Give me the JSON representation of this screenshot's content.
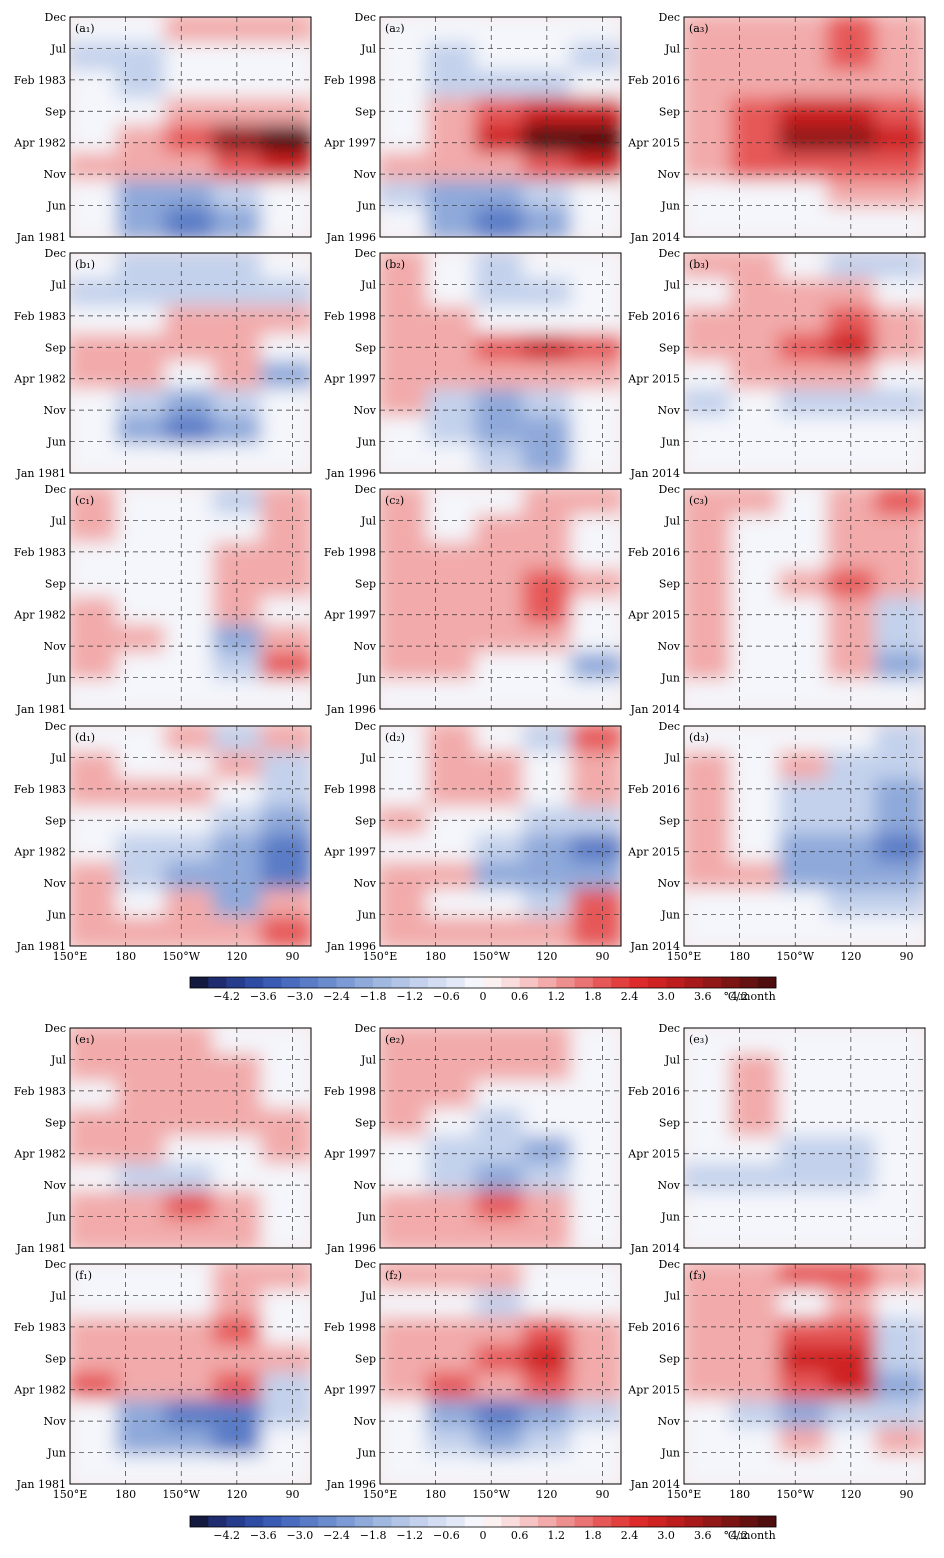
{
  "chart_data": {
    "type": "heatmap",
    "description_units": "SST tendency anomaly, Hovmoller (longitude vs time) contour panels",
    "colorbar": {
      "unit_label": "℃/month",
      "tick_labels": [
        "−4.2",
        "−3.6",
        "−3.0",
        "−2.4",
        "−1.8",
        "−1.2",
        "−0.6",
        "0",
        "0.6",
        "1.2",
        "1.8",
        "2.4",
        "3.0",
        "3.6",
        "4.2"
      ],
      "bins": [
        -4.8,
        -4.5,
        -4.2,
        -3.9,
        -3.6,
        -3.3,
        -3.0,
        -2.7,
        -2.4,
        -2.1,
        -1.8,
        -1.5,
        -1.2,
        -0.9,
        -0.6,
        -0.3,
        0,
        0.3,
        0.6,
        0.9,
        1.2,
        1.5,
        1.8,
        2.1,
        2.4,
        2.7,
        3.0,
        3.3,
        3.6,
        3.9,
        4.2,
        4.5,
        4.8
      ],
      "colors": [
        "#14193f",
        "#1f2d70",
        "#263c8c",
        "#2e4ca3",
        "#3a5bb3",
        "#4a6cbe",
        "#5a7cc6",
        "#6a8ccd",
        "#7c9bd4",
        "#8ea9da",
        "#a0b7e0",
        "#b2c5e6",
        "#c3d1ec",
        "#d3ddf1",
        "#e2e8f5",
        "#f4f6fb",
        "#fbf1f1",
        "#f9dcdc",
        "#f6c4c4",
        "#f2aaaa",
        "#ee8f8f",
        "#ea7474",
        "#e65858",
        "#e23f3f",
        "#dd2a2a",
        "#cf2222",
        "#be1d1d",
        "#a81a1a",
        "#921717",
        "#7c1414",
        "#661111",
        "#500d0d"
      ]
    },
    "longitude_ticks": [
      "150°E",
      "180",
      "150°W",
      "120",
      "90"
    ],
    "columns": [
      {
        "time_ticks": [
          "Jan 1981",
          "Jun",
          "Nov",
          "Apr 1982",
          "Sep",
          "Feb 1983",
          "Jul",
          "Dec"
        ]
      },
      {
        "time_ticks": [
          "Jan 1996",
          "Jun",
          "Nov",
          "Apr 1997",
          "Sep",
          "Feb 1998",
          "Jul",
          "Dec"
        ]
      },
      {
        "time_ticks": [
          "Jan 2014",
          "Jun",
          "Nov",
          "Apr 2015",
          "Sep",
          "Feb 2016",
          "Jul",
          "Dec"
        ]
      }
    ],
    "panels": [
      {
        "label": "(a₁)",
        "row": 0,
        "col": 0,
        "sign": [
          [
            0,
            0,
            1,
            1,
            1
          ],
          [
            -1,
            -1,
            0,
            0,
            0
          ],
          [
            0,
            -1,
            0,
            0,
            0
          ],
          [
            0,
            0,
            1,
            1,
            1
          ],
          [
            0,
            1,
            2,
            4,
            5
          ],
          [
            1,
            1,
            1,
            2,
            3
          ],
          [
            0,
            -2,
            -2,
            -1,
            0
          ],
          [
            0,
            -2,
            -3,
            -2,
            0
          ]
        ]
      },
      {
        "label": "(a₂)",
        "row": 0,
        "col": 1,
        "sign": [
          [
            0,
            0,
            0,
            0,
            0
          ],
          [
            0,
            -1,
            0,
            0,
            -1
          ],
          [
            0,
            -1,
            -1,
            -1,
            0
          ],
          [
            0,
            1,
            2,
            3,
            3
          ],
          [
            0,
            1,
            3,
            5,
            6
          ],
          [
            1,
            1,
            1,
            2,
            3
          ],
          [
            -1,
            -2,
            -2,
            -1,
            0
          ],
          [
            0,
            -2,
            -3,
            -2,
            0
          ]
        ]
      },
      {
        "label": "(a₃)",
        "row": 0,
        "col": 2,
        "sign": [
          [
            1,
            1,
            1,
            2,
            1
          ],
          [
            1,
            1,
            1,
            2,
            1
          ],
          [
            1,
            1,
            1,
            1,
            1
          ],
          [
            1,
            2,
            3,
            3,
            2
          ],
          [
            1,
            2,
            4,
            4,
            3
          ],
          [
            1,
            2,
            2,
            2,
            2
          ],
          [
            0,
            0,
            0,
            1,
            1
          ],
          [
            0,
            0,
            0,
            0,
            0
          ]
        ]
      },
      {
        "label": "(b₁)",
        "row": 1,
        "col": 0,
        "sign": [
          [
            0,
            -1,
            -1,
            -1,
            0
          ],
          [
            -1,
            -1,
            -1,
            -1,
            -1
          ],
          [
            0,
            0,
            1,
            1,
            1
          ],
          [
            1,
            1,
            1,
            1,
            0
          ],
          [
            1,
            1,
            0,
            1,
            -2
          ],
          [
            0,
            -1,
            -2,
            -1,
            0
          ],
          [
            0,
            -2,
            -3,
            -2,
            0
          ],
          [
            0,
            0,
            0,
            0,
            0
          ]
        ]
      },
      {
        "label": "(b₂)",
        "row": 1,
        "col": 1,
        "sign": [
          [
            1,
            0,
            -1,
            0,
            0
          ],
          [
            1,
            0,
            -1,
            -1,
            0
          ],
          [
            1,
            1,
            0,
            0,
            0
          ],
          [
            1,
            1,
            2,
            3,
            2
          ],
          [
            1,
            1,
            1,
            1,
            1
          ],
          [
            1,
            -1,
            -2,
            -1,
            0
          ],
          [
            0,
            -1,
            -2,
            -2,
            0
          ],
          [
            0,
            0,
            -1,
            -2,
            0
          ]
        ]
      },
      {
        "label": "(b₃)",
        "row": 1,
        "col": 2,
        "sign": [
          [
            1,
            1,
            0,
            -1,
            -1
          ],
          [
            0,
            1,
            1,
            1,
            0
          ],
          [
            1,
            1,
            1,
            2,
            1
          ],
          [
            1,
            1,
            2,
            3,
            1
          ],
          [
            0,
            1,
            1,
            1,
            0
          ],
          [
            -1,
            0,
            -1,
            -1,
            -1
          ],
          [
            0,
            0,
            0,
            0,
            0
          ],
          [
            0,
            0,
            0,
            0,
            0
          ]
        ]
      },
      {
        "label": "(c₁)",
        "row": 2,
        "col": 0,
        "sign": [
          [
            1,
            0,
            0,
            -1,
            1
          ],
          [
            1,
            0,
            0,
            0,
            1
          ],
          [
            0,
            0,
            0,
            1,
            1
          ],
          [
            0,
            0,
            0,
            1,
            1
          ],
          [
            1,
            0,
            0,
            1,
            0
          ],
          [
            1,
            1,
            0,
            -2,
            1
          ],
          [
            1,
            0,
            0,
            -1,
            2
          ],
          [
            0,
            0,
            0,
            0,
            0
          ]
        ]
      },
      {
        "label": "(c₂)",
        "row": 2,
        "col": 1,
        "sign": [
          [
            1,
            0,
            0,
            1,
            1
          ],
          [
            1,
            0,
            1,
            1,
            0
          ],
          [
            1,
            1,
            1,
            1,
            0
          ],
          [
            1,
            1,
            1,
            2,
            1
          ],
          [
            1,
            1,
            1,
            2,
            0
          ],
          [
            1,
            1,
            1,
            1,
            0
          ],
          [
            1,
            1,
            0,
            0,
            -2
          ],
          [
            0,
            0,
            0,
            0,
            0
          ]
        ]
      },
      {
        "label": "(c₃)",
        "row": 2,
        "col": 2,
        "sign": [
          [
            1,
            1,
            0,
            1,
            2
          ],
          [
            1,
            0,
            0,
            1,
            1
          ],
          [
            1,
            0,
            0,
            1,
            1
          ],
          [
            1,
            0,
            1,
            2,
            1
          ],
          [
            1,
            0,
            0,
            1,
            -1
          ],
          [
            1,
            0,
            0,
            1,
            -1
          ],
          [
            1,
            0,
            0,
            1,
            -2
          ],
          [
            0,
            0,
            0,
            0,
            0
          ]
        ]
      },
      {
        "label": "(d₁)",
        "row": 3,
        "col": 0,
        "sign": [
          [
            0,
            0,
            1,
            -1,
            1
          ],
          [
            1,
            0,
            0,
            1,
            -1
          ],
          [
            1,
            1,
            1,
            0,
            -1
          ],
          [
            0,
            0,
            0,
            -1,
            -2
          ],
          [
            0,
            -1,
            -1,
            -2,
            -3
          ],
          [
            1,
            -1,
            -2,
            -2,
            -3
          ],
          [
            1,
            0,
            1,
            -2,
            1
          ],
          [
            1,
            1,
            1,
            1,
            2
          ]
        ]
      },
      {
        "label": "(d₂)",
        "row": 3,
        "col": 1,
        "sign": [
          [
            0,
            1,
            0,
            -1,
            2
          ],
          [
            0,
            1,
            1,
            0,
            1
          ],
          [
            0,
            1,
            1,
            0,
            1
          ],
          [
            1,
            0,
            0,
            -1,
            -1
          ],
          [
            0,
            0,
            -1,
            -2,
            -3
          ],
          [
            1,
            1,
            -2,
            -2,
            -2
          ],
          [
            1,
            0,
            0,
            -1,
            2
          ],
          [
            1,
            1,
            1,
            1,
            2
          ]
        ]
      },
      {
        "label": "(d₃)",
        "row": 3,
        "col": 2,
        "sign": [
          [
            0,
            0,
            0,
            0,
            -1
          ],
          [
            1,
            0,
            1,
            -1,
            -1
          ],
          [
            1,
            0,
            -1,
            -1,
            -2
          ],
          [
            1,
            0,
            -1,
            -1,
            -2
          ],
          [
            1,
            0,
            -2,
            -2,
            -3
          ],
          [
            1,
            1,
            -2,
            -2,
            -2
          ],
          [
            0,
            0,
            0,
            -1,
            -1
          ],
          [
            0,
            0,
            0,
            0,
            0
          ]
        ]
      },
      {
        "label": "(e₁)",
        "row": 4,
        "col": 0,
        "sign": [
          [
            1,
            1,
            1,
            0,
            0
          ],
          [
            1,
            1,
            1,
            1,
            0
          ],
          [
            0,
            1,
            1,
            1,
            0
          ],
          [
            1,
            1,
            1,
            1,
            1
          ],
          [
            1,
            1,
            0,
            0,
            1
          ],
          [
            0,
            -1,
            -1,
            0,
            0
          ],
          [
            1,
            1,
            2,
            1,
            0
          ],
          [
            1,
            1,
            1,
            1,
            0
          ]
        ]
      },
      {
        "label": "(e₂)",
        "row": 4,
        "col": 1,
        "sign": [
          [
            1,
            1,
            1,
            1,
            0
          ],
          [
            1,
            1,
            1,
            1,
            0
          ],
          [
            1,
            1,
            0,
            0,
            0
          ],
          [
            1,
            0,
            -1,
            0,
            0
          ],
          [
            0,
            -1,
            -1,
            -2,
            0
          ],
          [
            0,
            -1,
            -2,
            -1,
            0
          ],
          [
            1,
            1,
            2,
            1,
            0
          ],
          [
            1,
            1,
            1,
            1,
            0
          ]
        ]
      },
      {
        "label": "(e₃)",
        "row": 4,
        "col": 2,
        "sign": [
          [
            0,
            0,
            0,
            0,
            0
          ],
          [
            0,
            1,
            0,
            0,
            0
          ],
          [
            0,
            1,
            0,
            0,
            0
          ],
          [
            0,
            1,
            0,
            0,
            0
          ],
          [
            0,
            0,
            -1,
            -1,
            0
          ],
          [
            -1,
            -1,
            -1,
            -1,
            0
          ],
          [
            0,
            0,
            0,
            0,
            0
          ],
          [
            0,
            0,
            0,
            0,
            0
          ]
        ]
      },
      {
        "label": "(f₁)",
        "row": 5,
        "col": 0,
        "sign": [
          [
            0,
            0,
            0,
            1,
            1
          ],
          [
            0,
            0,
            0,
            1,
            0
          ],
          [
            1,
            1,
            1,
            2,
            0
          ],
          [
            1,
            1,
            1,
            1,
            1
          ],
          [
            2,
            1,
            1,
            2,
            -1
          ],
          [
            0,
            -2,
            -3,
            -3,
            -1
          ],
          [
            0,
            -2,
            -2,
            -3,
            0
          ],
          [
            0,
            0,
            0,
            0,
            0
          ]
        ]
      },
      {
        "label": "(f₂)",
        "row": 5,
        "col": 1,
        "sign": [
          [
            1,
            1,
            1,
            0,
            0
          ],
          [
            0,
            0,
            -1,
            0,
            0
          ],
          [
            1,
            1,
            1,
            2,
            1
          ],
          [
            1,
            1,
            2,
            3,
            1
          ],
          [
            1,
            2,
            1,
            2,
            1
          ],
          [
            0,
            -2,
            -3,
            -2,
            -1
          ],
          [
            0,
            -1,
            -2,
            -1,
            0
          ],
          [
            0,
            0,
            0,
            0,
            0
          ]
        ]
      },
      {
        "label": "(f₃)",
        "row": 5,
        "col": 2,
        "sign": [
          [
            1,
            1,
            2,
            2,
            1
          ],
          [
            1,
            1,
            0,
            1,
            0
          ],
          [
            1,
            1,
            2,
            2,
            -1
          ],
          [
            1,
            1,
            3,
            3,
            -1
          ],
          [
            1,
            1,
            2,
            3,
            -2
          ],
          [
            0,
            -1,
            -2,
            -1,
            -1
          ],
          [
            0,
            0,
            1,
            0,
            1
          ],
          [
            0,
            0,
            0,
            0,
            0
          ]
        ]
      }
    ]
  }
}
